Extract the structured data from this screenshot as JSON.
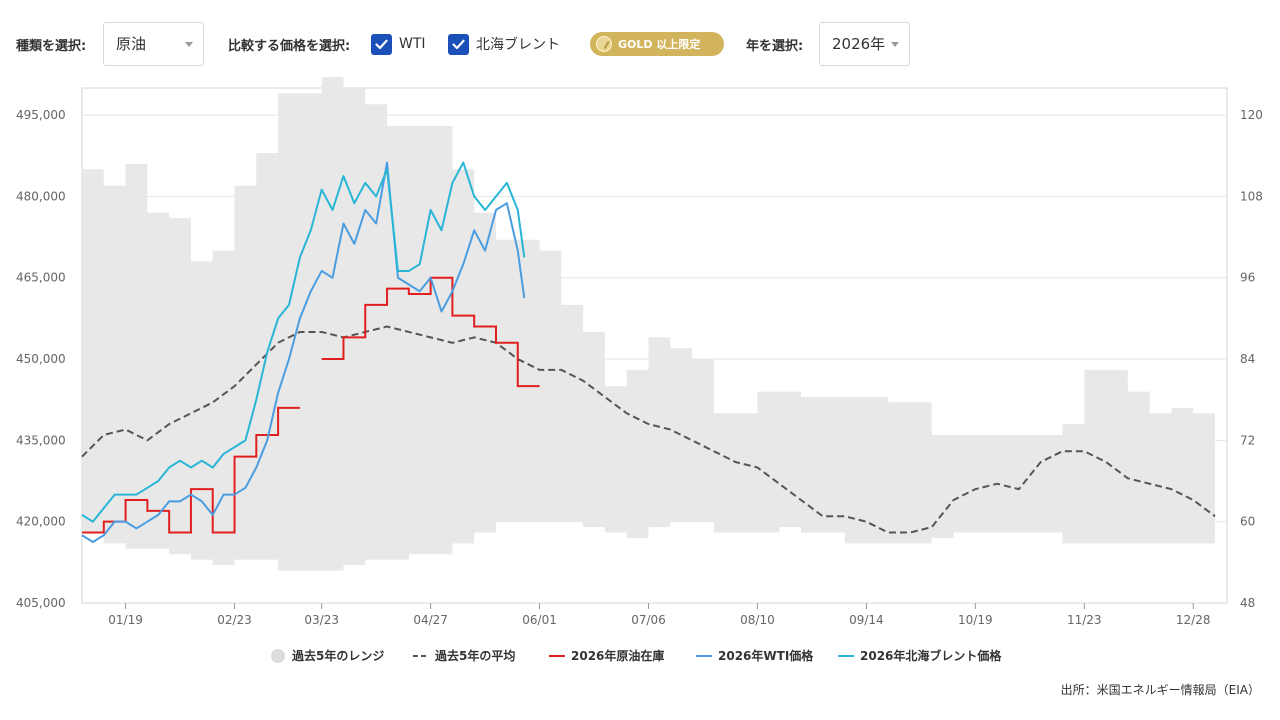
{
  "controls": {
    "type_label": "種類を選択:",
    "type_value": "原油",
    "compare_label": "比較する価格を選択:",
    "wti_label": "WTI",
    "brent_label": "北海ブレント",
    "gold_label": "GOLD 以上限定",
    "year_label": "年を選択:",
    "year_value": "2026年"
  },
  "source": "出所：米国エネルギー情報局（EIA）",
  "chart_data": {
    "type": "line",
    "x_ticks": [
      "01/19",
      "02/23",
      "03/23",
      "04/27",
      "06/01",
      "07/06",
      "08/10",
      "09/14",
      "10/19",
      "11/23",
      "12/28"
    ],
    "x_tick_weeks": [
      2,
      7,
      11,
      16,
      21,
      26,
      31,
      36,
      41,
      46,
      51
    ],
    "y_left_ticks": [
      "405,000",
      "420,000",
      "435,000",
      "450,000",
      "465,000",
      "480,000",
      "495,000"
    ],
    "y_left_range": [
      405000,
      500000
    ],
    "y_right_ticks": [
      "48",
      "60",
      "72",
      "84",
      "96",
      "108",
      "120"
    ],
    "y_right_range": [
      48,
      124
    ],
    "legend": [
      "過去5年のレンジ",
      "過去5年の平均",
      "2026年原油在庫",
      "2026年WTI価格",
      "2026年北海ブレント価格"
    ],
    "colors": {
      "range": "#e8e8e8",
      "avg": "#555555",
      "inventory": "#e02020",
      "wti": "#4a9de0",
      "brent": "#29b6d6"
    },
    "range": {
      "weeks": [
        0,
        1,
        2,
        3,
        4,
        5,
        6,
        7,
        8,
        9,
        10,
        11,
        12,
        13,
        14,
        15,
        16,
        17,
        18,
        19,
        20,
        21,
        22,
        23,
        24,
        25,
        26,
        27,
        28,
        29,
        30,
        31,
        32,
        33,
        34,
        35,
        36,
        37,
        38,
        39,
        40,
        41,
        42,
        43,
        44,
        45,
        46,
        47,
        48,
        49,
        50,
        51,
        52
      ],
      "upper": [
        485000,
        482000,
        486000,
        477000,
        476000,
        468000,
        470000,
        482000,
        488000,
        499000,
        499000,
        502000,
        500000,
        497000,
        493000,
        493000,
        493000,
        485000,
        477000,
        472000,
        472000,
        470000,
        460000,
        455000,
        445000,
        448000,
        454000,
        452000,
        450000,
        440000,
        440000,
        444000,
        444000,
        443000,
        443000,
        443000,
        443000,
        442000,
        442000,
        436000,
        436000,
        436000,
        436000,
        436000,
        436000,
        438000,
        448000,
        448000,
        444000,
        440000,
        441000,
        440000,
        431000
      ],
      "lower": [
        418000,
        416000,
        415000,
        415000,
        414000,
        413000,
        412000,
        413000,
        413000,
        411000,
        411000,
        411000,
        412000,
        413000,
        413000,
        414000,
        414000,
        416000,
        418000,
        420000,
        420000,
        420000,
        420000,
        419000,
        418000,
        417000,
        419000,
        420000,
        420000,
        418000,
        418000,
        418000,
        419000,
        418000,
        418000,
        416000,
        416000,
        416000,
        416000,
        417000,
        418000,
        418000,
        418000,
        418000,
        418000,
        416000,
        416000,
        416000,
        416000,
        416000,
        416000,
        416000,
        416000
      ]
    },
    "avg": {
      "weeks": [
        0,
        1,
        2,
        3,
        4,
        5,
        6,
        7,
        8,
        9,
        10,
        11,
        12,
        13,
        14,
        15,
        16,
        17,
        18,
        19,
        20,
        21,
        22,
        23,
        24,
        25,
        26,
        27,
        28,
        29,
        30,
        31,
        32,
        33,
        34,
        35,
        36,
        37,
        38,
        39,
        40,
        41,
        42,
        43,
        44,
        45,
        46,
        47,
        48,
        49,
        50,
        51,
        52
      ],
      "values": [
        432000,
        436000,
        437000,
        435000,
        438000,
        440000,
        442000,
        445000,
        449000,
        453000,
        455000,
        455000,
        454000,
        455000,
        456000,
        455000,
        454000,
        453000,
        454000,
        453000,
        450000,
        448000,
        448000,
        446000,
        443000,
        440000,
        438000,
        437000,
        435000,
        433000,
        431000,
        430000,
        427000,
        424000,
        421000,
        421000,
        420000,
        418000,
        418000,
        419000,
        424000,
        426000,
        427000,
        426000,
        431000,
        433000,
        433000,
        431000,
        428000,
        427000,
        426000,
        424000,
        421000
      ]
    },
    "inventory": {
      "weeks": [
        0,
        1,
        2,
        3,
        4,
        5,
        6,
        7,
        8,
        9,
        10,
        11,
        12,
        13,
        14,
        15,
        16,
        17,
        18,
        19,
        20,
        21
      ],
      "values": [
        418000,
        420000,
        424000,
        422000,
        418000,
        426000,
        418000,
        432000,
        436000,
        441000,
        null,
        450000,
        454000,
        460000,
        463000,
        462000,
        465000,
        458000,
        456000,
        453000,
        445000,
        null
      ]
    },
    "wti": {
      "weeks": [
        0,
        0.5,
        1,
        1.5,
        2,
        2.5,
        3,
        3.5,
        4,
        4.5,
        5,
        5.5,
        6,
        6.5,
        7,
        7.5,
        8,
        8.5,
        9,
        9.5,
        10,
        10.5,
        11,
        11.5,
        12,
        12.5,
        13,
        13.5,
        14,
        14.5,
        15,
        15.5,
        16,
        16.5,
        17,
        17.5,
        18,
        18.5,
        19,
        19.5,
        20,
        20.3
      ],
      "values": [
        58,
        57,
        58,
        60,
        60,
        59,
        60,
        61,
        63,
        63,
        64,
        63,
        61,
        64,
        64,
        65,
        68,
        72,
        79,
        84,
        90,
        94,
        97,
        96,
        104,
        101,
        106,
        104,
        113,
        96,
        95,
        94,
        96,
        91,
        94,
        98,
        103,
        100,
        106,
        107,
        100,
        93
      ]
    },
    "brent": {
      "weeks": [
        0,
        0.5,
        1,
        1.5,
        2,
        2.5,
        3,
        3.5,
        4,
        4.5,
        5,
        5.5,
        6,
        6.5,
        7,
        7.5,
        8,
        8.5,
        9,
        9.5,
        10,
        10.5,
        11,
        11.5,
        12,
        12.5,
        13,
        13.5,
        14,
        14.5,
        15,
        15.5,
        16,
        16.5,
        17,
        17.5,
        18,
        18.5,
        19,
        19.5,
        20,
        20.3
      ],
      "values": [
        61,
        60,
        62,
        64,
        64,
        64,
        65,
        66,
        68,
        69,
        68,
        69,
        68,
        70,
        71,
        72,
        78,
        85,
        90,
        92,
        99,
        103,
        109,
        106,
        111,
        107,
        110,
        108,
        112,
        97,
        97,
        98,
        106,
        103,
        110,
        113,
        108,
        106,
        108,
        110,
        106,
        99
      ]
    }
  }
}
